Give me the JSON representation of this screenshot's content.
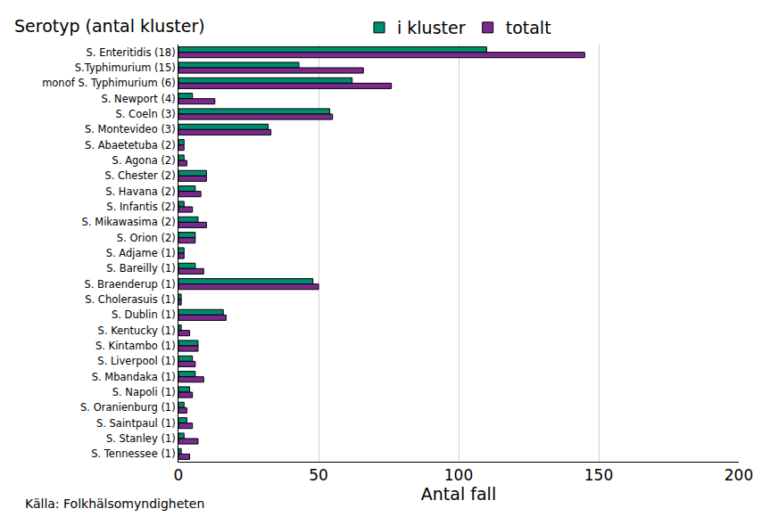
{
  "chart_data": {
    "type": "bar",
    "orientation": "horizontal",
    "ylabel": "Serotyp (antal kluster)",
    "xlabel": "Antal fall",
    "source": "Källa: Folkhälsomyndigheten",
    "categories": [
      "S. Enteritidis (18)",
      "S.Typhimurium (15)",
      "monof S. Typhimurium (6)",
      "S. Newport (4)",
      "S. Coeln (3)",
      "S. Montevideo (3)",
      "S. Abaetetuba (2)",
      "S. Agona (2)",
      "S. Chester (2)",
      "S. Havana (2)",
      "S. Infantis (2)",
      "S. Mikawasima (2)",
      "S. Orion (2)",
      "S. Adjame (1)",
      "S. Bareilly (1)",
      "S. Braenderup (1)",
      "S. Cholerasuis (1)",
      "S. Dublin (1)",
      "S. Kentucky (1)",
      "S. Kintambo (1)",
      "S. Liverpool (1)",
      "S. Mbandaka (1)",
      "S. Napoli (1)",
      "S. Oranienburg (1)",
      "S. Saintpaul (1)",
      "S. Stanley (1)",
      "S. Tennessee (1)"
    ],
    "series": [
      {
        "name": "i kluster",
        "color": "#008c6e",
        "values": [
          110,
          43,
          62,
          5,
          54,
          32,
          2,
          2,
          10,
          6,
          2,
          7,
          6,
          2,
          6,
          48,
          1,
          16,
          1,
          7,
          5,
          6,
          4,
          2,
          3,
          2,
          1
        ]
      },
      {
        "name": "totalt",
        "color": "#7a2a8c",
        "values": [
          145,
          66,
          76,
          13,
          55,
          33,
          2,
          3,
          10,
          8,
          5,
          10,
          6,
          2,
          9,
          50,
          1,
          17,
          4,
          7,
          6,
          9,
          5,
          3,
          5,
          7,
          4
        ]
      }
    ],
    "xlim": [
      0,
      200
    ],
    "xticks": [
      0,
      50,
      100,
      150,
      200
    ],
    "grid": true,
    "legend": "top"
  }
}
